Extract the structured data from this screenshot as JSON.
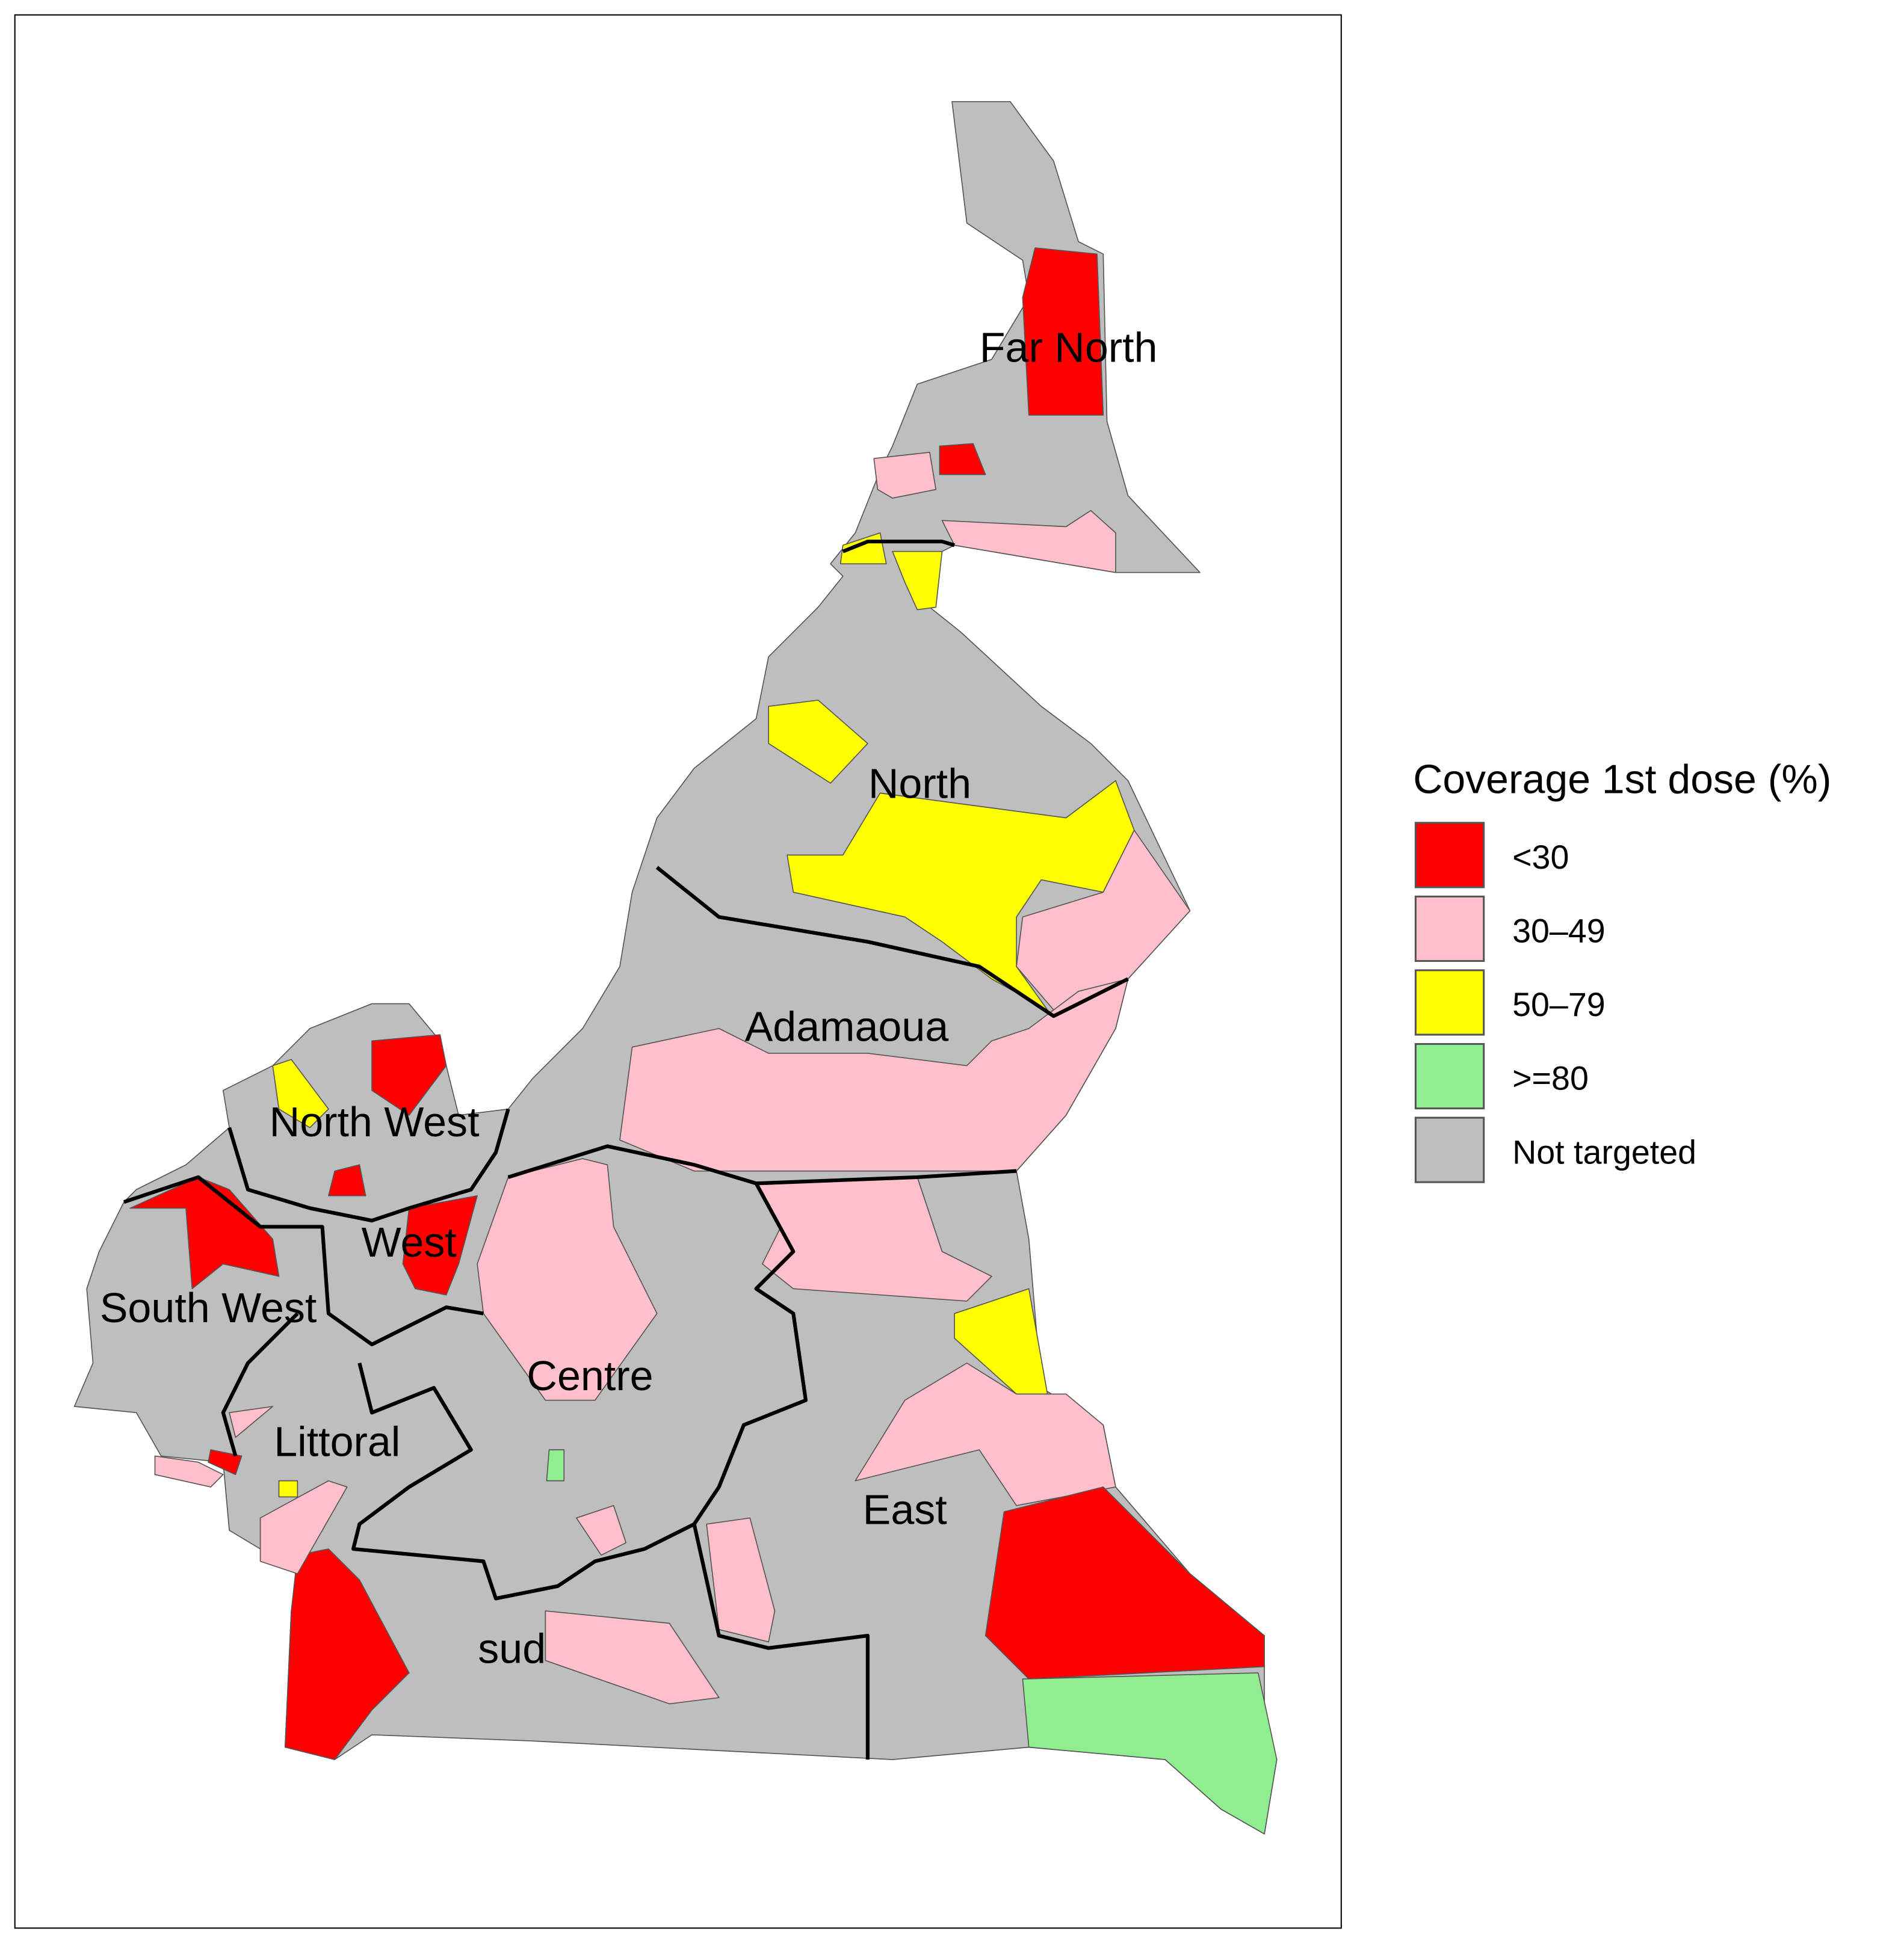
{
  "legend": {
    "title": "Coverage 1st dose (%)",
    "items": [
      {
        "label": "<30",
        "color": "#ff0000"
      },
      {
        "label": "30–49",
        "color": "#ffc0cb"
      },
      {
        "label": "50–79",
        "color": "#ffff00"
      },
      {
        "label": ">=80",
        "color": "#90ee90"
      },
      {
        "label": "Not targeted",
        "color": "#bebebe"
      }
    ]
  },
  "regions": [
    {
      "name": "Far North"
    },
    {
      "name": "North"
    },
    {
      "name": "Adamaoua"
    },
    {
      "name": "North West"
    },
    {
      "name": "West"
    },
    {
      "name": "South West"
    },
    {
      "name": "Centre"
    },
    {
      "name": "Littoral"
    },
    {
      "name": "East"
    },
    {
      "name": "sud"
    }
  ]
}
